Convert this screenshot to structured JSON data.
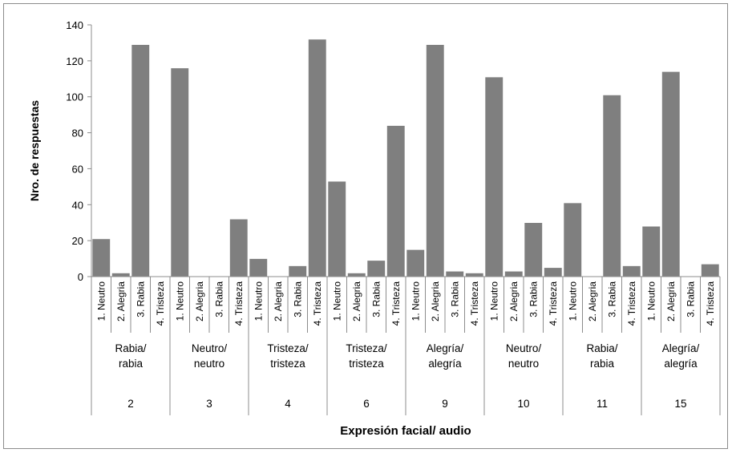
{
  "chart_data": {
    "type": "bar",
    "xlabel": "Expresión facial/ audio",
    "ylabel": "Nro. de respuestas",
    "ylim": [
      0,
      140
    ],
    "yticks": [
      0,
      20,
      40,
      60,
      80,
      100,
      120,
      140
    ],
    "bar_color": "#7f7f7f",
    "categories": [
      "1. Neutro",
      "2. Alegria",
      "3. Rabia",
      "4. Tristeza"
    ],
    "groups": [
      {
        "id": "2",
        "label": [
          "Rabia/",
          "rabia"
        ],
        "values": [
          21,
          2,
          129,
          0
        ]
      },
      {
        "id": "3",
        "label": [
          "Neutro/",
          "neutro"
        ],
        "values": [
          116,
          0,
          0,
          32
        ]
      },
      {
        "id": "4",
        "label": [
          "Tristeza/",
          "tristeza"
        ],
        "values": [
          10,
          0,
          6,
          132
        ]
      },
      {
        "id": "6",
        "label": [
          "Tristeza/",
          "tristeza"
        ],
        "values": [
          53,
          2,
          9,
          84
        ]
      },
      {
        "id": "9",
        "label": [
          "Alegría/",
          "alegría"
        ],
        "values": [
          15,
          129,
          3,
          2
        ]
      },
      {
        "id": "10",
        "label": [
          "Neutro/",
          "neutro"
        ],
        "values": [
          111,
          3,
          30,
          5
        ]
      },
      {
        "id": "11",
        "label": [
          "Rabia/",
          "rabia"
        ],
        "values": [
          41,
          0,
          101,
          6
        ]
      },
      {
        "id": "15",
        "label": [
          "Alegría/",
          "alegría"
        ],
        "values": [
          28,
          114,
          0,
          7
        ]
      }
    ]
  }
}
